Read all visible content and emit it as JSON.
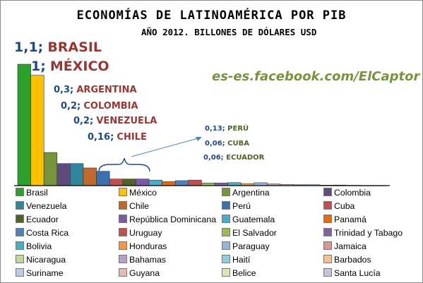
{
  "chart_data": {
    "type": "bar",
    "title": "ECONOMÍAS DE LATINOAMÉRICA POR PIB",
    "subtitle": "AÑO 2012. BILLONES DE DÓLARES USD",
    "credit": "es-es.facebook.com/ElCaptor",
    "ylim": [
      0,
      1.1
    ],
    "series": [
      {
        "name": "Brasil",
        "value": 1.1,
        "color": "#2ca02c"
      },
      {
        "name": "México",
        "value": 1.0,
        "color": "#ffc000"
      },
      {
        "name": "Argentina",
        "value": 0.3,
        "color": "#77933c"
      },
      {
        "name": "Colombia",
        "value": 0.2,
        "color": "#604a7b"
      },
      {
        "name": "Venezuela",
        "value": 0.2,
        "color": "#31859c"
      },
      {
        "name": "Chile",
        "value": 0.16,
        "color": "#c0692b"
      },
      {
        "name": "Perú",
        "value": 0.13,
        "color": "#3a6fb0"
      },
      {
        "name": "Cuba",
        "value": 0.06,
        "color": "#c0504d"
      },
      {
        "name": "Ecuador",
        "value": 0.06,
        "color": "#4f6228"
      },
      {
        "name": "República Dominicana",
        "value": 0.06,
        "color": "#7b5aa6"
      },
      {
        "name": "Guatemala",
        "value": 0.05,
        "color": "#4bacc6"
      },
      {
        "name": "Panamá",
        "value": 0.036,
        "color": "#e46c0a"
      },
      {
        "name": "Costa Rica",
        "value": 0.045,
        "color": "#4f81bd"
      },
      {
        "name": "Uruguay",
        "value": 0.05,
        "color": "#c0504d"
      },
      {
        "name": "El Salvador",
        "value": 0.024,
        "color": "#9bbb59"
      },
      {
        "name": "Trinidad y Tabago",
        "value": 0.024,
        "color": "#8064a2"
      },
      {
        "name": "Bolivia",
        "value": 0.027,
        "color": "#4bacc6"
      },
      {
        "name": "Honduras",
        "value": 0.018,
        "color": "#f79646"
      },
      {
        "name": "Paraguay",
        "value": 0.026,
        "color": "#95b3d7"
      },
      {
        "name": "Jamaica",
        "value": 0.015,
        "color": "#d99694"
      },
      {
        "name": "Nicaragua",
        "value": 0.011,
        "color": "#c3d69b"
      },
      {
        "name": "Bahamas",
        "value": 0.008,
        "color": "#b3a2c7"
      },
      {
        "name": "Haití",
        "value": 0.008,
        "color": "#93cddd"
      },
      {
        "name": "Barbados",
        "value": 0.004,
        "color": "#fac090"
      },
      {
        "name": "Suriname",
        "value": 0.005,
        "color": "#b9cde5"
      },
      {
        "name": "Guyana",
        "value": 0.003,
        "color": "#e6b9b8"
      },
      {
        "name": "Belice",
        "value": 0.0015,
        "color": "#d7e4bc"
      },
      {
        "name": "Santa Lucía",
        "value": 0.0013,
        "color": "#ccc1da"
      }
    ],
    "annotations": {
      "large": [
        {
          "value": "1,1;",
          "country": "BRASIL"
        },
        {
          "value": "1;",
          "country": "MÉXICO"
        },
        {
          "value": "0,3;",
          "country": "ARGENTINA"
        },
        {
          "value": "0,2;",
          "country": "COLOMBIA"
        },
        {
          "value": "0,2;",
          "country": "VENEZUELA"
        },
        {
          "value": "0,16;",
          "country": "CHILE"
        }
      ],
      "small": [
        {
          "value": "0,13;",
          "country": "PERÚ"
        },
        {
          "value": "0,06;",
          "country": "CUBA"
        },
        {
          "value": "0,06;",
          "country": "ECUADOR"
        }
      ]
    },
    "legend_position": "bottom",
    "grid": false
  }
}
